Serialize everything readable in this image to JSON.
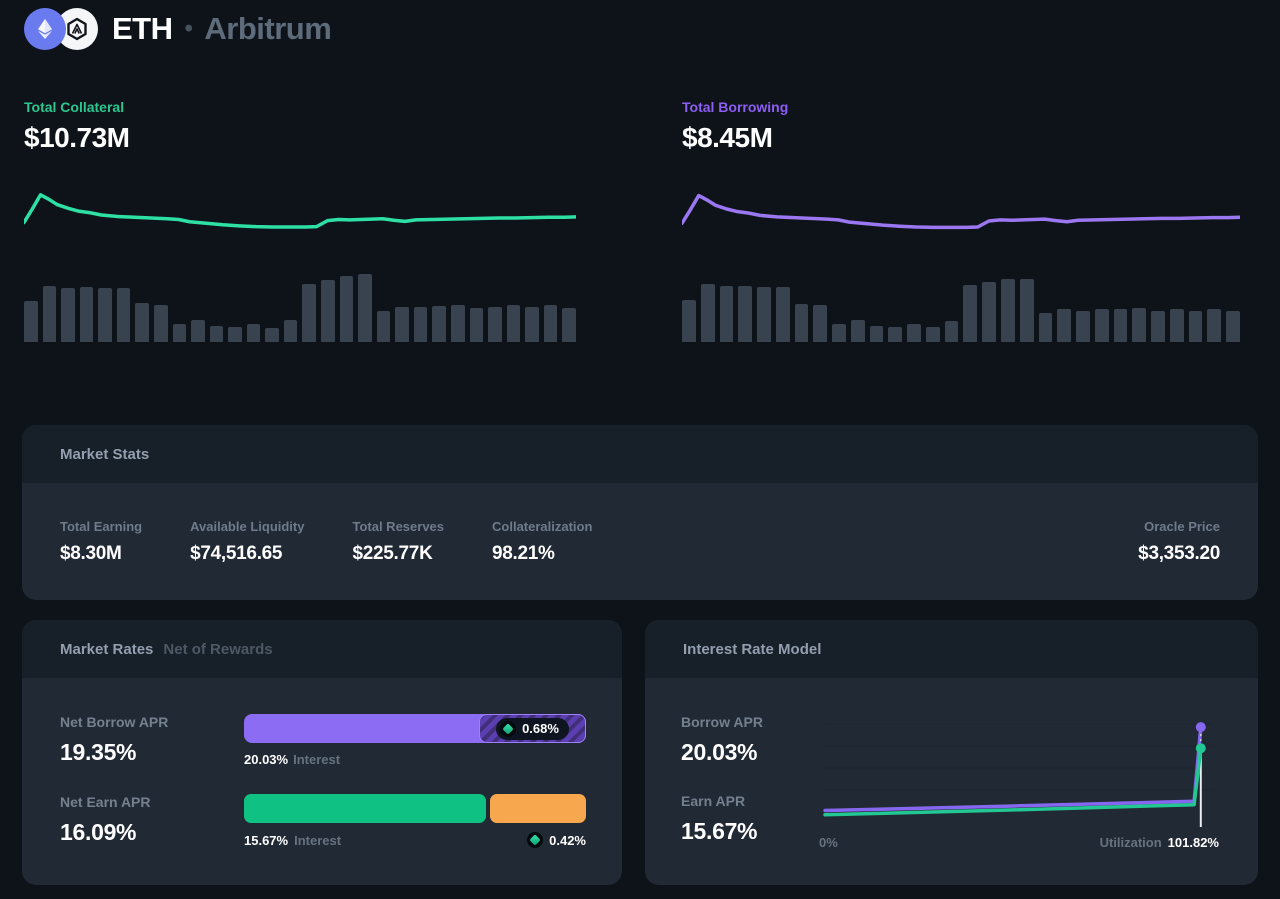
{
  "header": {
    "asset": "ETH",
    "separator": "•",
    "network": "Arbitrum",
    "icons": {
      "asset": "ethereum-icon",
      "network": "arbitrum-icon",
      "reward": "reward-token-icon"
    }
  },
  "collateral": {
    "label": "Total Collateral",
    "value": "$10.73M",
    "accent": "#2cc68f"
  },
  "borrowing": {
    "label": "Total Borrowing",
    "value": "$8.45M",
    "accent": "#8c5ef2"
  },
  "market_stats": {
    "title": "Market Stats",
    "stats": [
      {
        "label": "Total Earning",
        "value": "$8.30M"
      },
      {
        "label": "Available Liquidity",
        "value": "$74,516.65"
      },
      {
        "label": "Total Reserves",
        "value": "$225.77K"
      },
      {
        "label": "Collateralization",
        "value": "98.21%"
      }
    ],
    "oracle": {
      "label": "Oracle Price",
      "value": "$3,353.20"
    }
  },
  "market_rates": {
    "title": "Market Rates",
    "subtitle": "Net of Rewards",
    "borrow": {
      "label": "Net Borrow APR",
      "value": "19.35%",
      "interest_pct": "20.03%",
      "interest_label": "Interest",
      "reward_pct": "0.68%",
      "bar_color": "#8b6cf3"
    },
    "earn": {
      "label": "Net Earn APR",
      "value": "16.09%",
      "interest_pct": "15.67%",
      "interest_label": "Interest",
      "reward_pct": "0.42%",
      "bar_color": "#0fc183",
      "bonus_bar_color": "#f7a74e"
    }
  },
  "interest_rate_model": {
    "title": "Interest Rate Model",
    "borrow": {
      "label": "Borrow APR",
      "value": "20.03%"
    },
    "earn": {
      "label": "Earn APR",
      "value": "15.67%"
    },
    "x_left_tick": "0%",
    "x_right_label": "Utilization",
    "x_right_value": "101.82%"
  },
  "colors": {
    "page_bg": "#0e131a",
    "panel_bg": "#212935",
    "panel_header_bg": "#171f29",
    "accent_green": "#2cc68f",
    "accent_purple": "#8c5ef2",
    "volume_bar": "#394350",
    "orange": "#f7a74e"
  },
  "chart_data": {
    "collateral_sparkline": {
      "type": "line",
      "color": "#2ee0a4",
      "points": [
        [
          0,
          26
        ],
        [
          1.5,
          62
        ],
        [
          3,
          100
        ],
        [
          4.5,
          88
        ],
        [
          6,
          74
        ],
        [
          8,
          64
        ],
        [
          10,
          56
        ],
        [
          12,
          52
        ],
        [
          14,
          46
        ],
        [
          17,
          42
        ],
        [
          20,
          40
        ],
        [
          23,
          38
        ],
        [
          26,
          36
        ],
        [
          28,
          34
        ],
        [
          30,
          28
        ],
        [
          33,
          24
        ],
        [
          36,
          20
        ],
        [
          39,
          17
        ],
        [
          42,
          15
        ],
        [
          45,
          14
        ],
        [
          48,
          14
        ],
        [
          51,
          14
        ],
        [
          53,
          15
        ],
        [
          55,
          31
        ],
        [
          57,
          34
        ],
        [
          59,
          33
        ],
        [
          61,
          34
        ],
        [
          63,
          35
        ],
        [
          65,
          36
        ],
        [
          67,
          32
        ],
        [
          69,
          29
        ],
        [
          71,
          33
        ],
        [
          74,
          34
        ],
        [
          77,
          35
        ],
        [
          80,
          36
        ],
        [
          83,
          37
        ],
        [
          86,
          38
        ],
        [
          89,
          38
        ],
        [
          92,
          39
        ],
        [
          95,
          40
        ],
        [
          98,
          40
        ],
        [
          100,
          41
        ]
      ]
    },
    "collateral_volume_bars": {
      "type": "bar",
      "color": "#394350",
      "values": [
        0.6,
        0.83,
        0.8,
        0.81,
        0.79,
        0.8,
        0.57,
        0.55,
        0.27,
        0.33,
        0.24,
        0.22,
        0.26,
        0.2,
        0.33,
        0.86,
        0.91,
        0.97,
        1.0,
        0.45,
        0.52,
        0.52,
        0.53,
        0.55,
        0.5,
        0.52,
        0.54,
        0.52,
        0.55,
        0.5
      ]
    },
    "borrowing_sparkline": {
      "type": "line",
      "color": "#9b78f2",
      "points": [
        [
          0,
          24
        ],
        [
          1.5,
          60
        ],
        [
          3,
          98
        ],
        [
          4.5,
          86
        ],
        [
          6,
          72
        ],
        [
          8,
          62
        ],
        [
          10,
          55
        ],
        [
          12,
          51
        ],
        [
          14,
          45
        ],
        [
          17,
          41
        ],
        [
          20,
          39
        ],
        [
          23,
          37
        ],
        [
          26,
          35
        ],
        [
          28,
          33
        ],
        [
          30,
          27
        ],
        [
          33,
          23
        ],
        [
          36,
          19
        ],
        [
          39,
          16
        ],
        [
          42,
          14
        ],
        [
          45,
          13
        ],
        [
          48,
          13
        ],
        [
          51,
          13
        ],
        [
          53,
          14
        ],
        [
          55,
          30
        ],
        [
          57,
          33
        ],
        [
          59,
          32
        ],
        [
          61,
          33
        ],
        [
          63,
          34
        ],
        [
          65,
          35
        ],
        [
          67,
          31
        ],
        [
          69,
          28
        ],
        [
          71,
          32
        ],
        [
          74,
          33
        ],
        [
          77,
          34
        ],
        [
          80,
          35
        ],
        [
          83,
          36
        ],
        [
          86,
          37
        ],
        [
          89,
          37
        ],
        [
          92,
          38
        ],
        [
          95,
          39
        ],
        [
          98,
          39
        ],
        [
          100,
          40
        ]
      ]
    },
    "borrowing_volume_bars": {
      "type": "bar",
      "color": "#394350",
      "values": [
        0.62,
        0.85,
        0.83,
        0.83,
        0.81,
        0.81,
        0.56,
        0.54,
        0.26,
        0.33,
        0.24,
        0.22,
        0.26,
        0.22,
        0.31,
        0.84,
        0.88,
        0.93,
        0.92,
        0.42,
        0.48,
        0.46,
        0.48,
        0.48,
        0.5,
        0.46,
        0.48,
        0.46,
        0.48,
        0.45
      ]
    },
    "interest_rate_model": {
      "type": "line",
      "x_domain": [
        0,
        103.5
      ],
      "y_domain": [
        0,
        21.5
      ],
      "xlabel": "Utilization",
      "marker_x": 101.82,
      "grid": true,
      "series": [
        {
          "name": "Borrow APR",
          "color": "#8668f0",
          "points": [
            [
              0,
              2.8
            ],
            [
              50,
              3.7
            ],
            [
              100,
              4.7
            ],
            [
              101.82,
              20.03
            ]
          ]
        },
        {
          "name": "Earn APR",
          "color": "#22c792",
          "points": [
            [
              0,
              1.9
            ],
            [
              50,
              2.9
            ],
            [
              100,
              4.0
            ],
            [
              101.82,
              15.67
            ]
          ]
        }
      ]
    }
  }
}
